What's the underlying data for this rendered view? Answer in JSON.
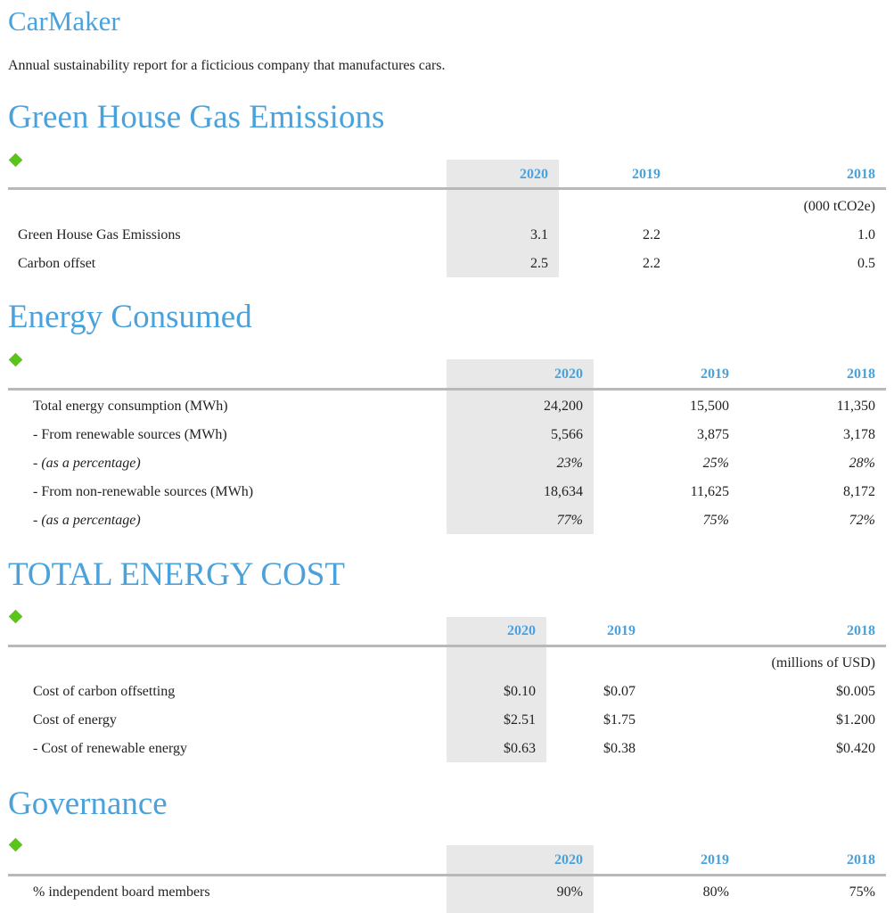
{
  "title": "CarMaker",
  "subtitle": "Annual sustainability report for a ficticious company that manufactures cars.",
  "accent_color": "#4aa2dc",
  "marker_color": "#5ac419",
  "ghg": {
    "heading": "Green House Gas Emissions",
    "years": [
      "2020",
      "2019",
      "2018"
    ],
    "unit": "(000 tCO2e)",
    "rows": [
      {
        "label": "Green House Gas Emissions",
        "v2020": "3.1",
        "v2019": "2.2",
        "v2018": "1.0"
      },
      {
        "label": "Carbon offset",
        "v2020": "2.5",
        "v2019": "2.2",
        "v2018": "0.5"
      }
    ]
  },
  "energy": {
    "heading": "Energy Consumed",
    "years": [
      "2020",
      "2019",
      "2018"
    ],
    "rows": [
      {
        "label": "Total energy consumption (MWh)",
        "v2020": "24,200",
        "v2019": "15,500",
        "v2018": "11,350"
      },
      {
        "label": "- From renewable sources (MWh)",
        "v2020": "5,566",
        "v2019": "3,875",
        "v2018": "3,178"
      },
      {
        "label": "- (as a percentage)",
        "v2020": "23%",
        "v2019": "25%",
        "v2018": "28%"
      },
      {
        "label": "- From non-renewable sources (MWh)",
        "v2020": "18,634",
        "v2019": "11,625",
        "v2018": "8,172"
      },
      {
        "label": "- (as a percentage)",
        "v2020": "77%",
        "v2019": "75%",
        "v2018": "72%"
      }
    ]
  },
  "cost": {
    "heading": "TOTAL ENERGY COST",
    "years": [
      "2020",
      "2019",
      "2018"
    ],
    "unit": "(millions of USD)",
    "rows": [
      {
        "label": "Cost of carbon offsetting",
        "v2020": "$0.10",
        "v2019": "$0.07",
        "v2018": "$0.005"
      },
      {
        "label": "Cost of energy",
        "v2020": "$2.51",
        "v2019": "$1.75",
        "v2018": "$1.200"
      },
      {
        "label": "- Cost of renewable energy",
        "v2020": "$0.63",
        "v2019": "$0.38",
        "v2018": "$0.420"
      }
    ]
  },
  "governance": {
    "heading": "Governance",
    "years": [
      "2020",
      "2019",
      "2018"
    ],
    "rows": [
      {
        "label": "% independent board members",
        "v2020": "90%",
        "v2019": "80%",
        "v2018": "75%"
      }
    ]
  }
}
